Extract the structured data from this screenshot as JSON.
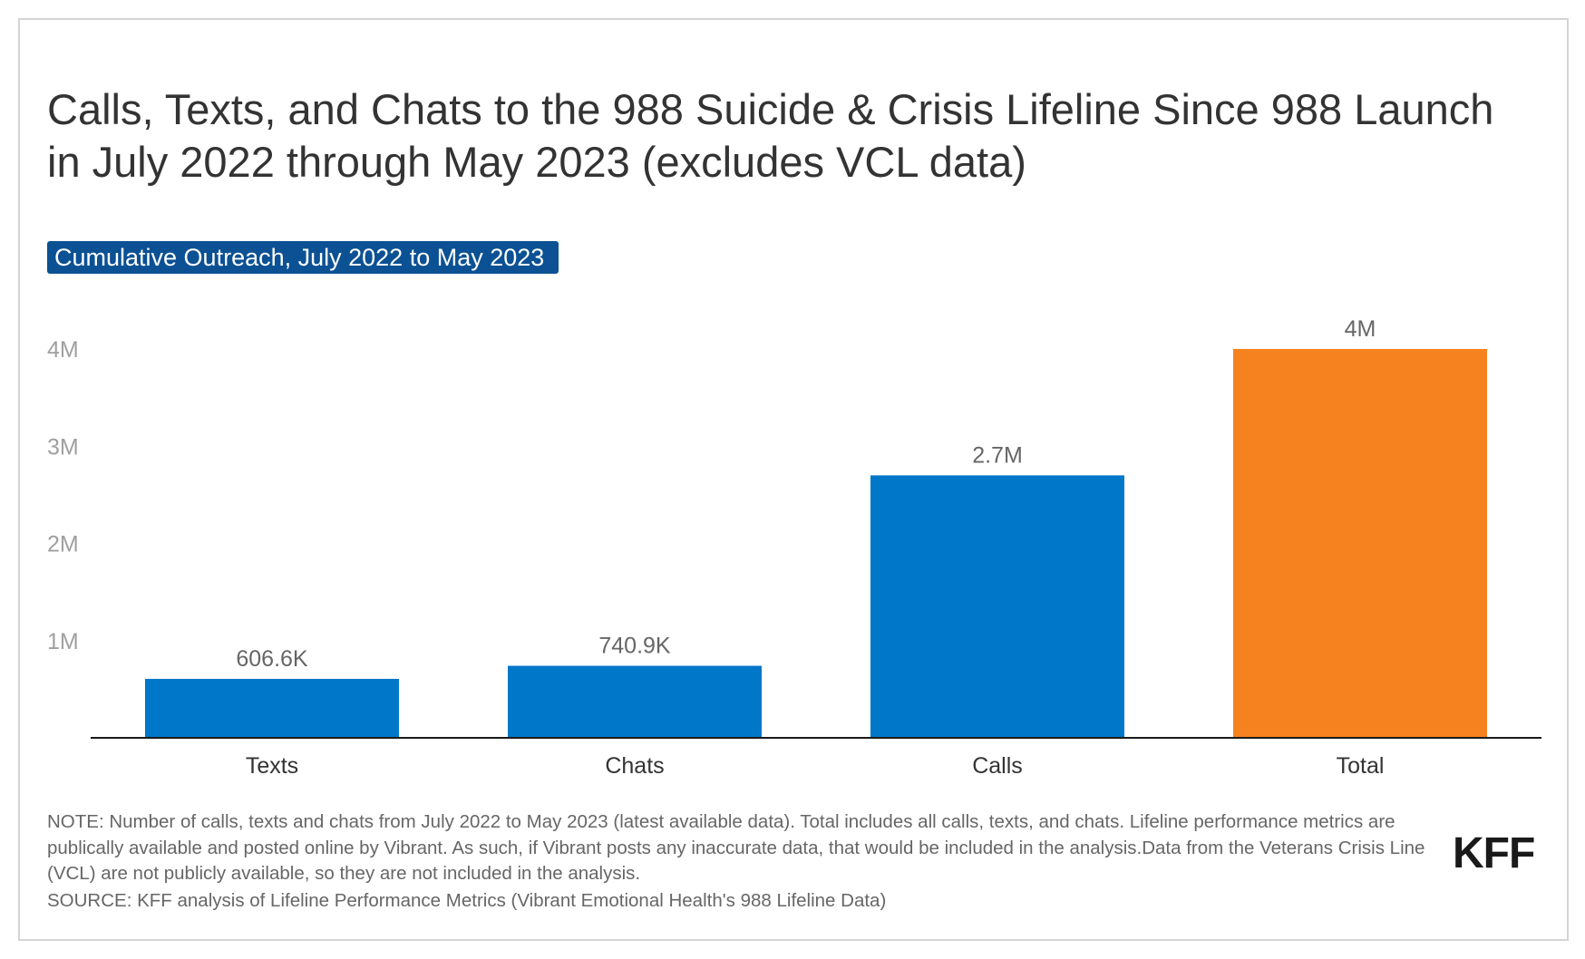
{
  "header": {
    "title": "Calls, Texts, and Chats to the 988 Suicide & Crisis Lifeline Since 988 Launch in July 2022 through May 2023 (excludes VCL data)",
    "subtitle_badge": "Cumulative Outreach, July 2022 to May 2023"
  },
  "chart_data": {
    "type": "bar",
    "categories": [
      "Texts",
      "Chats",
      "Calls",
      "Total"
    ],
    "values": [
      606600,
      740900,
      2700000,
      4000000
    ],
    "data_labels": [
      "606.6K",
      "740.9K",
      "2.7M",
      "4M"
    ],
    "y_ticks": [
      {
        "value": 1000000,
        "label": "1M"
      },
      {
        "value": 2000000,
        "label": "2M"
      },
      {
        "value": 3000000,
        "label": "3M"
      },
      {
        "value": 4000000,
        "label": "4M"
      }
    ],
    "ylim": [
      0,
      4000000
    ],
    "grid": false,
    "colors": {
      "default": "#0077c8",
      "highlight": "#f5821f",
      "highlight_category": "Total",
      "axis": "#1a1a1a",
      "tick_label": "#a0a0a0",
      "data_label": "#666666",
      "category_label": "#333333"
    }
  },
  "footer": {
    "note": "NOTE: Number of calls, texts and chats from July 2022 to May 2023 (latest available data). Total includes all calls, texts, and chats. Lifeline performance metrics are publically available and posted online by Vibrant. As such, if Vibrant posts any inaccurate data, that would be included in the analysis.Data from the Veterans Crisis Line (VCL) are not publicly available, so they are not included in the analysis.",
    "source": "SOURCE: KFF analysis of Lifeline Performance Metrics (Vibrant Emotional Health's 988 Lifeline Data)",
    "logo": "KFF"
  }
}
